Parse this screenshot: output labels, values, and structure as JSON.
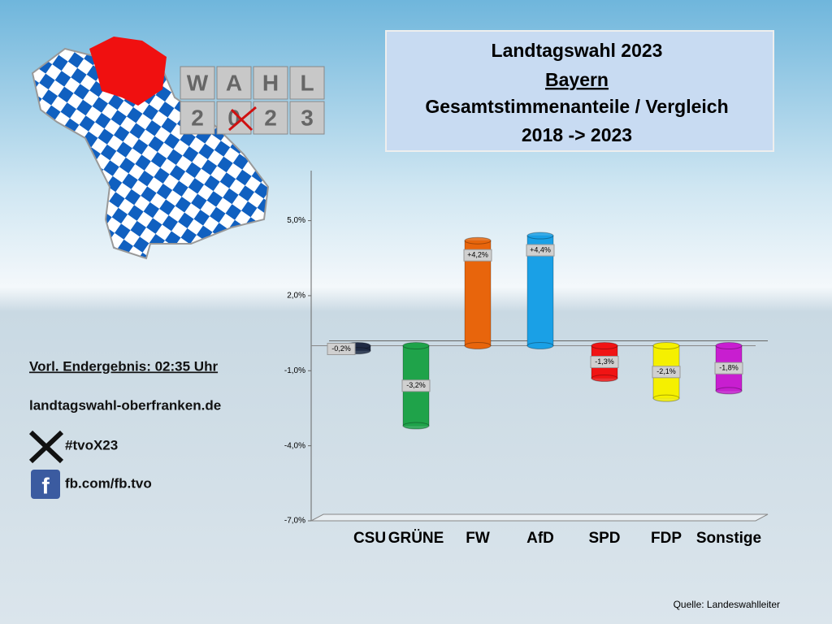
{
  "chart_data": {
    "type": "bar",
    "title": [
      "Landtagswahl 2023",
      "Bayern",
      "Gesamtstimmenanteile / Vergleich",
      "2018 -> 2023"
    ],
    "categories": [
      "CSU",
      "GRÜNE",
      "FW",
      "AfD",
      "SPD",
      "FDP",
      "Sonstige"
    ],
    "values": [
      -0.2,
      -3.2,
      4.2,
      4.4,
      -1.3,
      -2.1,
      -1.8
    ],
    "value_labels": [
      "-0,2%",
      "-3,2%",
      "+4,2%",
      "+4,4%",
      "-1,3%",
      "-2,1%",
      "-1,8%"
    ],
    "colors": [
      "#1f2a44",
      "#1fa34a",
      "#e8650c",
      "#1aa0e6",
      "#f01414",
      "#f5f000",
      "#c81ed0"
    ],
    "ylim": [
      -7,
      7
    ],
    "yticks": [
      {
        "value": 5,
        "label": "5,0%"
      },
      {
        "value": 2,
        "label": "2,0%"
      },
      {
        "value": -1,
        "label": "-1,0%"
      },
      {
        "value": -4,
        "label": "-4,0%"
      },
      {
        "value": -7,
        "label": "-7,0%"
      }
    ],
    "grid": false
  },
  "logo": {
    "letters": [
      "W",
      "A",
      "H",
      "L",
      "2",
      "0",
      "2",
      "3"
    ]
  },
  "sidebar": {
    "status": "Vorl. Endergebnis: 02:35 Uhr",
    "website": "landtagswahl-oberfranken.de",
    "x_handle": "#tvoX23",
    "facebook": "fb.com/fb.tvo"
  },
  "source": "Quelle: Landeswahlleiter"
}
